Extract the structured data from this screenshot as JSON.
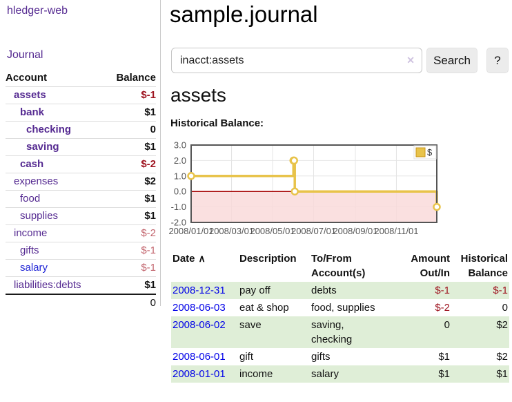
{
  "app": {
    "title": "hledger-web"
  },
  "sidebar": {
    "journal_link": "Journal",
    "accounts": {
      "headers": {
        "account": "Account",
        "balance": "Balance"
      },
      "rows": [
        {
          "name": "assets",
          "balance": "$-1"
        },
        {
          "name": "bank",
          "balance": "$1"
        },
        {
          "name": "checking",
          "balance": "0"
        },
        {
          "name": "saving",
          "balance": "$1"
        },
        {
          "name": "cash",
          "balance": "$-2"
        },
        {
          "name": "expenses",
          "balance": "$2"
        },
        {
          "name": "food",
          "balance": "$1"
        },
        {
          "name": "supplies",
          "balance": "$1"
        },
        {
          "name": "income",
          "balance": "$-2"
        },
        {
          "name": "gifts",
          "balance": "$-1"
        },
        {
          "name": "salary",
          "balance": "$-1"
        },
        {
          "name": "liabilities:debts",
          "balance": "$1"
        }
      ],
      "total": "0"
    }
  },
  "header": {
    "title": "sample.journal"
  },
  "search": {
    "value": "inacct:assets",
    "clear_icon": "✕",
    "button_label": "Search",
    "help_label": "?"
  },
  "register": {
    "heading": "assets",
    "chart_label": "Historical Balance:",
    "table": {
      "headers": {
        "date": "Date",
        "sort_icon": "∧",
        "description": "Description",
        "accounts": "To/From Account(s)",
        "amount": "Amount Out/In",
        "balance": "Historical Balance"
      },
      "rows": [
        {
          "date": "2008-12-31",
          "description": "pay off",
          "accounts": "debts",
          "amount": "$-1",
          "balance": "$-1"
        },
        {
          "date": "2008-06-03",
          "description": "eat & shop",
          "accounts": "food, supplies",
          "amount": "$-2",
          "balance": "0"
        },
        {
          "date": "2008-06-02",
          "description": "save",
          "accounts": "saving, checking",
          "amount": "0",
          "balance": "$2"
        },
        {
          "date": "2008-06-01",
          "description": "gift",
          "accounts": "gifts",
          "amount": "$1",
          "balance": "$2"
        },
        {
          "date": "2008-01-01",
          "description": "income",
          "accounts": "salary",
          "amount": "$1",
          "balance": "$1"
        }
      ]
    }
  },
  "chart_data": {
    "type": "line",
    "subtype": "step",
    "title": "Historical Balance:",
    "xlabel": "",
    "ylabel": "",
    "x_range_days": [
      0,
      365
    ],
    "ylim": [
      -2,
      3
    ],
    "grid": true,
    "legend": {
      "label": "$",
      "position": "top-right"
    },
    "series": [
      {
        "name": "$",
        "color": "#e8c34a",
        "points": [
          {
            "date": "2008-01-01",
            "day": 0,
            "value": 1
          },
          {
            "date": "2008-06-01",
            "day": 152,
            "value": 2
          },
          {
            "date": "2008-06-02",
            "day": 153,
            "value": 2
          },
          {
            "date": "2008-06-03",
            "day": 154,
            "value": 0
          },
          {
            "date": "2008-12-31",
            "day": 365,
            "value": -1
          }
        ]
      }
    ],
    "x_ticks": [
      {
        "label": "2008/01/01",
        "day": 0
      },
      {
        "label": "2008/03/01",
        "day": 60
      },
      {
        "label": "2008/05/01",
        "day": 121
      },
      {
        "label": "2008/07/01",
        "day": 182
      },
      {
        "label": "2008/09/01",
        "day": 244
      },
      {
        "label": "2008/11/01",
        "day": 305
      }
    ],
    "y_ticks": [
      {
        "label": "3.0",
        "value": 3
      },
      {
        "label": "2.0",
        "value": 2
      },
      {
        "label": "1.0",
        "value": 1
      },
      {
        "label": "0.0",
        "value": 0
      },
      {
        "label": "-1.0",
        "value": -1
      },
      {
        "label": "-2.0",
        "value": -2
      }
    ],
    "negative_region_color": "#f9d8d8",
    "zero_line_color": "#a40000",
    "grid_color": "#e4e4e4",
    "border_color": "#545454"
  },
  "colors": {
    "link_purple": "#552a91",
    "link_blue": "#2126d6",
    "date_link_blue": "#0000e8",
    "negative": "#9e1420",
    "negative_light": "#c2636c",
    "row_green": "#dfeed7",
    "series_gold": "#e8c34a"
  }
}
